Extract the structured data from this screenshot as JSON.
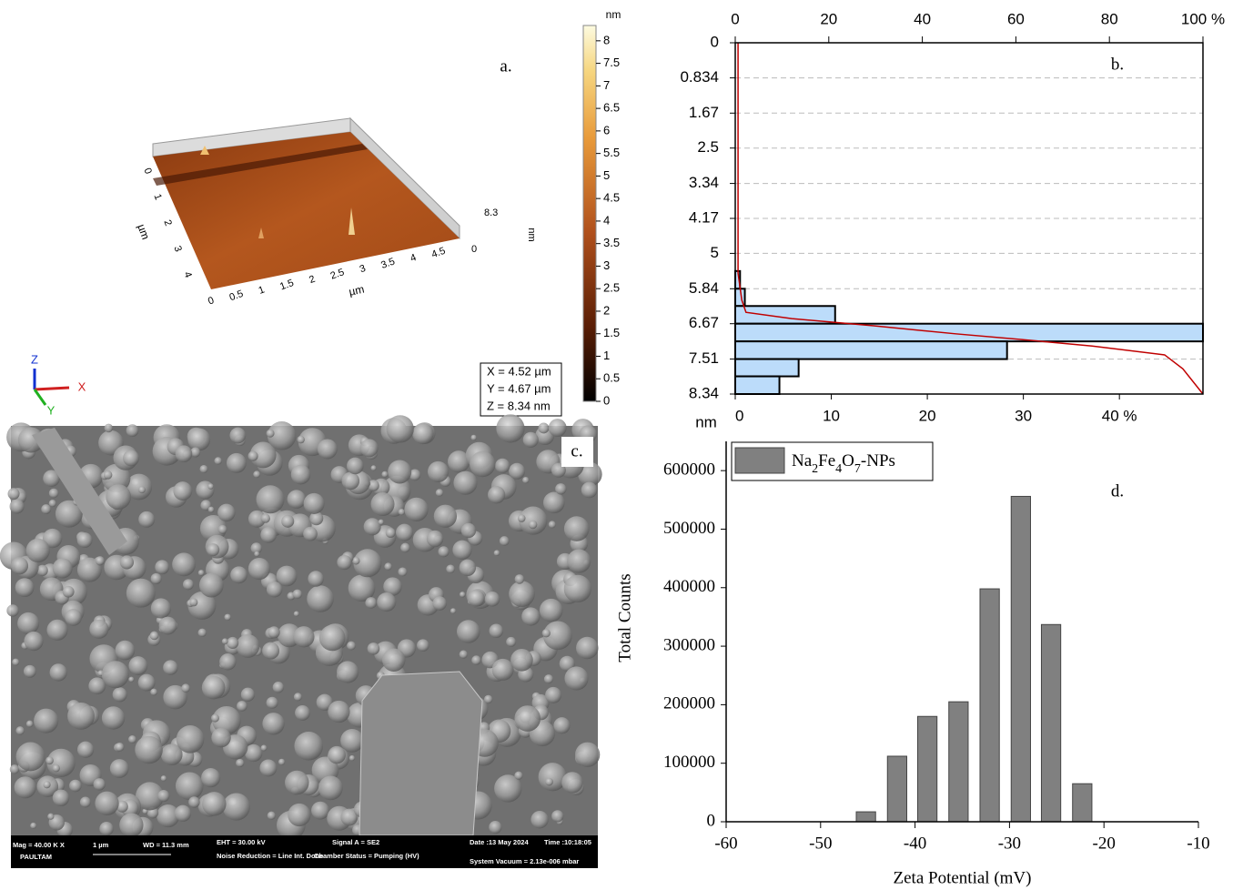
{
  "afm": {
    "label": "a.",
    "colorbar": {
      "unit": "nm",
      "lim": [
        0,
        8.34
      ],
      "ticks": [
        0,
        0.5,
        1,
        1.5,
        2,
        2.5,
        3,
        3.5,
        4,
        4.5,
        5,
        5.5,
        6,
        6.5,
        7,
        7.5,
        8
      ]
    },
    "x_axis": {
      "unit": "µm",
      "ticks": [
        0,
        0.5,
        1,
        1.5,
        2,
        2.5,
        3,
        3.5,
        4,
        4.5
      ]
    },
    "y_axis": {
      "unit": "µm",
      "ticks": [
        0,
        1,
        2,
        3,
        4
      ]
    },
    "z_axis": {
      "unit": "nm",
      "ticks": [
        8.3,
        0
      ]
    },
    "info": [
      "X = 4.52 µm",
      "Y = 4.67 µm",
      "Z = 8.34 nm"
    ],
    "gizmo": [
      "Z",
      "X",
      "Y"
    ]
  },
  "chart_data": [
    {
      "type": "histogram",
      "orientation": "horizontal",
      "label": "b.",
      "y_label": "nm",
      "bins": [
        5.42,
        5.84,
        6.25,
        6.67,
        7.09,
        7.51,
        7.92,
        8.34
      ],
      "values": [
        0.5,
        1,
        10.4,
        48.7,
        28.3,
        6.6,
        4.6
      ],
      "color": "#bcdcfa",
      "edge_color": "#000000",
      "xlim": [
        0,
        48.7
      ],
      "xticks": [
        0,
        10,
        20,
        30,
        {
          "value": 40,
          "label": "40 %"
        }
      ],
      "ylim": [
        8.34,
        0
      ],
      "yticks": [
        0,
        0.834,
        1.67,
        2.5,
        3.34,
        4.17,
        5,
        5.84,
        6.67,
        7.51,
        8.34
      ],
      "x2lim": [
        0,
        100
      ],
      "x2ticks": [
        0,
        20,
        40,
        60,
        80,
        {
          "value": 100,
          "label": "100 %"
        }
      ],
      "grid": true,
      "cumulative": {
        "axis": "x2",
        "color": "#c00000",
        "values": [
          0.6,
          0.6,
          1.4,
          2.3,
          12.1,
          29.6,
          47.1,
          60.7,
          76.3,
          91.8,
          95.7,
          100
        ],
        "heights": [
          0,
          5.47,
          6.11,
          6.4,
          6.55,
          6.72,
          6.91,
          7.04,
          7.2,
          7.41,
          7.74,
          8.34
        ]
      }
    },
    {
      "type": "bar",
      "label": "d.",
      "x_label": "Zeta Potential (mV)",
      "y_label": "Total Counts",
      "x": [
        -45.2,
        -41.9,
        -38.7,
        -35.4,
        -32.1,
        -28.8,
        -25.6,
        -22.3
      ],
      "series": [
        {
          "name": "Na2Fe4O7-NPs",
          "color": "#808080",
          "values": [
            17000,
            112000,
            180000,
            205000,
            398000,
            556000,
            337000,
            65000
          ]
        }
      ],
      "xlim": [
        -60,
        -10
      ],
      "xticks": [
        -60,
        -50,
        -40,
        -30,
        -20,
        -10
      ],
      "ylim": [
        0,
        650000
      ],
      "yticks": [
        0,
        100000,
        200000,
        300000,
        400000,
        500000,
        600000
      ],
      "legend": "top-left"
    }
  ],
  "sem": {
    "label": "c.",
    "info": [
      "Mag = 40.00 K X",
      "1 µm",
      "WD = 11.3 mm",
      "EHT = 30.00 kV",
      "Signal A = SE2",
      "Date :13 May 2024",
      "Time :10:18:05",
      "PAULTAM",
      "Noise Reduction = Line Int. Done",
      "Chamber Status = Pumping (HV)",
      "System Vacuum = 2.13e-006 mbar"
    ]
  }
}
